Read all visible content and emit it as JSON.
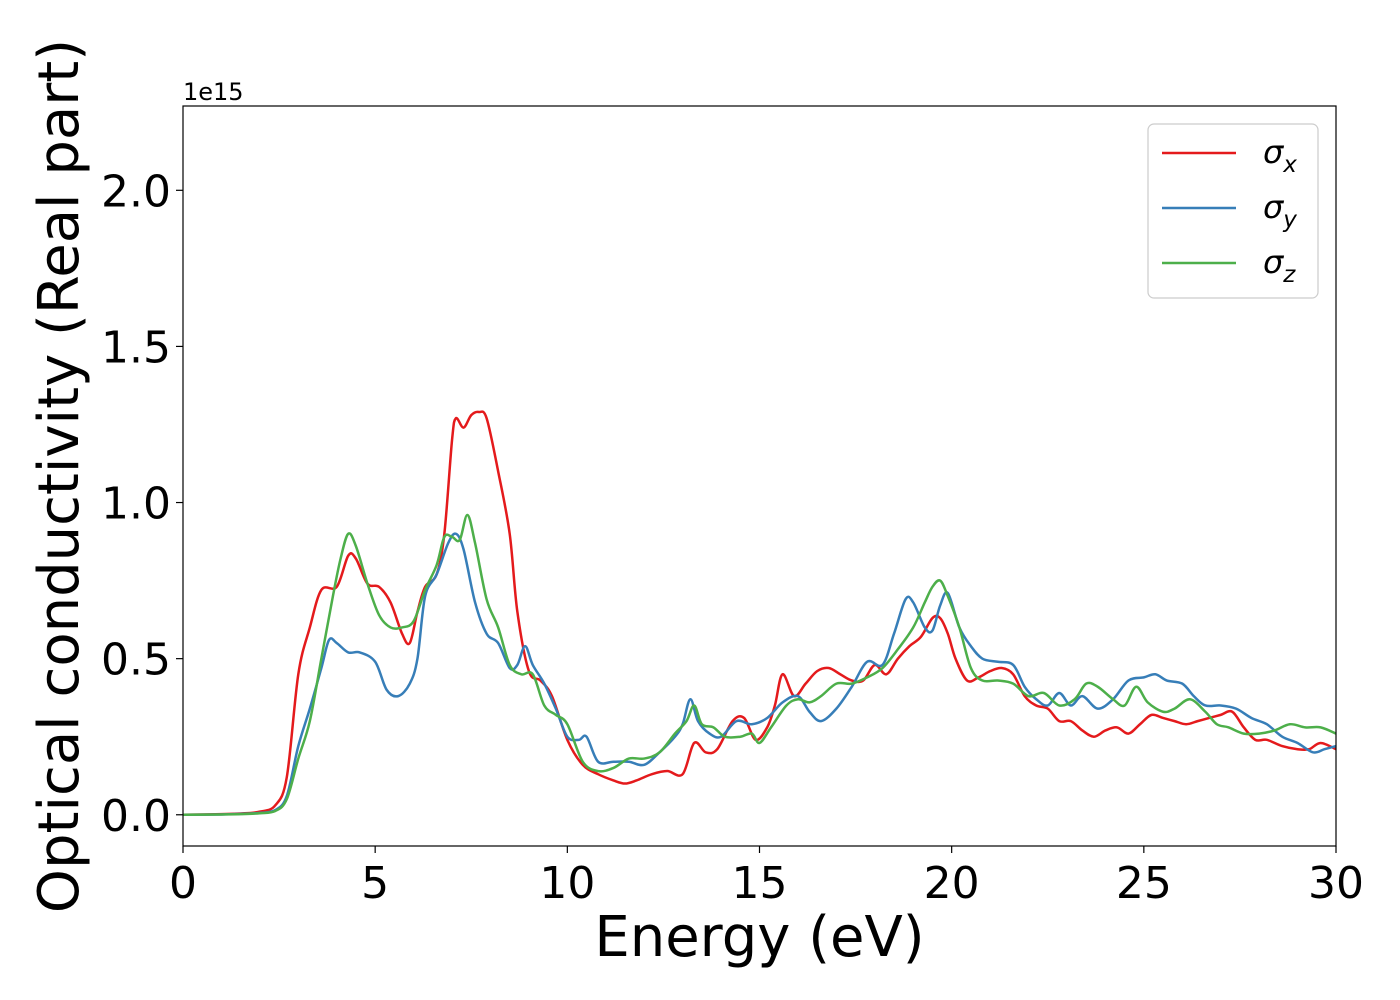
{
  "chart_data": {
    "type": "line",
    "title": "",
    "xlabel": "Energy (eV)",
    "ylabel": "Optical conductivity (Real part)",
    "offset_text": "1e15",
    "xlim": [
      0,
      30
    ],
    "ylim": [
      -0.1,
      2.27
    ],
    "xticks": [
      0,
      5,
      10,
      15,
      20,
      25,
      30
    ],
    "xtick_labels": [
      "0",
      "5",
      "10",
      "15",
      "20",
      "25",
      "30"
    ],
    "yticks": [
      0.0,
      0.5,
      1.0,
      1.5,
      2.0
    ],
    "ytick_labels": [
      "0.0",
      "0.5",
      "1.0",
      "1.5",
      "2.0"
    ],
    "grid": false,
    "legend_position": "top-right",
    "series": [
      {
        "label_base": "σ",
        "label_sub": "x",
        "color": "#e41a1c",
        "points": [
          [
            0,
            0
          ],
          [
            1,
            0.002
          ],
          [
            1.5,
            0.004
          ],
          [
            2,
            0.01
          ],
          [
            2.4,
            0.03
          ],
          [
            2.7,
            0.12
          ],
          [
            3.0,
            0.45
          ],
          [
            3.3,
            0.6
          ],
          [
            3.6,
            0.72
          ],
          [
            4.0,
            0.73
          ],
          [
            4.3,
            0.83
          ],
          [
            4.5,
            0.82
          ],
          [
            4.8,
            0.74
          ],
          [
            5.1,
            0.73
          ],
          [
            5.4,
            0.68
          ],
          [
            5.7,
            0.58
          ],
          [
            5.9,
            0.55
          ],
          [
            6.1,
            0.65
          ],
          [
            6.3,
            0.73
          ],
          [
            6.6,
            0.77
          ],
          [
            6.8,
            0.9
          ],
          [
            7.0,
            1.2
          ],
          [
            7.1,
            1.27
          ],
          [
            7.3,
            1.24
          ],
          [
            7.5,
            1.28
          ],
          [
            7.7,
            1.29
          ],
          [
            7.9,
            1.27
          ],
          [
            8.2,
            1.1
          ],
          [
            8.5,
            0.9
          ],
          [
            8.7,
            0.65
          ],
          [
            9.0,
            0.46
          ],
          [
            9.3,
            0.43
          ],
          [
            9.6,
            0.38
          ],
          [
            10.0,
            0.24
          ],
          [
            10.4,
            0.16
          ],
          [
            10.8,
            0.13
          ],
          [
            11.2,
            0.11
          ],
          [
            11.5,
            0.1
          ],
          [
            11.8,
            0.11
          ],
          [
            12.2,
            0.13
          ],
          [
            12.6,
            0.14
          ],
          [
            13.0,
            0.13
          ],
          [
            13.3,
            0.23
          ],
          [
            13.6,
            0.2
          ],
          [
            13.9,
            0.21
          ],
          [
            14.3,
            0.3
          ],
          [
            14.6,
            0.31
          ],
          [
            14.9,
            0.24
          ],
          [
            15.2,
            0.28
          ],
          [
            15.4,
            0.35
          ],
          [
            15.6,
            0.45
          ],
          [
            15.9,
            0.38
          ],
          [
            16.2,
            0.42
          ],
          [
            16.5,
            0.46
          ],
          [
            16.8,
            0.47
          ],
          [
            17.1,
            0.45
          ],
          [
            17.4,
            0.43
          ],
          [
            17.7,
            0.43
          ],
          [
            18.0,
            0.48
          ],
          [
            18.3,
            0.45
          ],
          [
            18.6,
            0.5
          ],
          [
            18.9,
            0.54
          ],
          [
            19.2,
            0.57
          ],
          [
            19.5,
            0.63
          ],
          [
            19.7,
            0.63
          ],
          [
            19.9,
            0.58
          ],
          [
            20.1,
            0.5
          ],
          [
            20.4,
            0.43
          ],
          [
            20.7,
            0.44
          ],
          [
            21.0,
            0.46
          ],
          [
            21.3,
            0.47
          ],
          [
            21.6,
            0.45
          ],
          [
            21.9,
            0.38
          ],
          [
            22.2,
            0.35
          ],
          [
            22.5,
            0.34
          ],
          [
            22.8,
            0.3
          ],
          [
            23.1,
            0.3
          ],
          [
            23.4,
            0.27
          ],
          [
            23.7,
            0.25
          ],
          [
            24.0,
            0.27
          ],
          [
            24.3,
            0.28
          ],
          [
            24.6,
            0.26
          ],
          [
            24.9,
            0.29
          ],
          [
            25.2,
            0.32
          ],
          [
            25.5,
            0.31
          ],
          [
            25.8,
            0.3
          ],
          [
            26.1,
            0.29
          ],
          [
            26.4,
            0.3
          ],
          [
            26.7,
            0.31
          ],
          [
            27.0,
            0.32
          ],
          [
            27.3,
            0.33
          ],
          [
            27.6,
            0.28
          ],
          [
            27.9,
            0.24
          ],
          [
            28.2,
            0.24
          ],
          [
            28.6,
            0.22
          ],
          [
            29.0,
            0.21
          ],
          [
            29.3,
            0.21
          ],
          [
            29.6,
            0.23
          ],
          [
            30,
            0.21
          ]
        ]
      },
      {
        "label_base": "σ",
        "label_sub": "y",
        "color": "#377eb8",
        "points": [
          [
            0,
            0
          ],
          [
            1,
            0.001
          ],
          [
            1.5,
            0.003
          ],
          [
            2,
            0.006
          ],
          [
            2.4,
            0.015
          ],
          [
            2.7,
            0.06
          ],
          [
            3.0,
            0.22
          ],
          [
            3.3,
            0.34
          ],
          [
            3.6,
            0.47
          ],
          [
            3.8,
            0.56
          ],
          [
            4.0,
            0.55
          ],
          [
            4.3,
            0.52
          ],
          [
            4.6,
            0.52
          ],
          [
            5.0,
            0.49
          ],
          [
            5.3,
            0.4
          ],
          [
            5.6,
            0.38
          ],
          [
            5.9,
            0.42
          ],
          [
            6.1,
            0.5
          ],
          [
            6.3,
            0.7
          ],
          [
            6.6,
            0.77
          ],
          [
            6.9,
            0.87
          ],
          [
            7.1,
            0.9
          ],
          [
            7.3,
            0.85
          ],
          [
            7.6,
            0.68
          ],
          [
            7.9,
            0.58
          ],
          [
            8.2,
            0.55
          ],
          [
            8.5,
            0.47
          ],
          [
            8.7,
            0.48
          ],
          [
            8.9,
            0.54
          ],
          [
            9.1,
            0.48
          ],
          [
            9.4,
            0.42
          ],
          [
            9.7,
            0.34
          ],
          [
            10.0,
            0.25
          ],
          [
            10.3,
            0.24
          ],
          [
            10.5,
            0.25
          ],
          [
            10.8,
            0.17
          ],
          [
            11.2,
            0.17
          ],
          [
            11.6,
            0.17
          ],
          [
            12.0,
            0.16
          ],
          [
            12.4,
            0.2
          ],
          [
            12.8,
            0.25
          ],
          [
            13.0,
            0.29
          ],
          [
            13.2,
            0.37
          ],
          [
            13.4,
            0.3
          ],
          [
            13.7,
            0.26
          ],
          [
            14.0,
            0.25
          ],
          [
            14.4,
            0.3
          ],
          [
            14.8,
            0.29
          ],
          [
            15.2,
            0.31
          ],
          [
            15.6,
            0.36
          ],
          [
            16.0,
            0.38
          ],
          [
            16.3,
            0.33
          ],
          [
            16.6,
            0.3
          ],
          [
            17.0,
            0.34
          ],
          [
            17.4,
            0.41
          ],
          [
            17.8,
            0.49
          ],
          [
            18.2,
            0.48
          ],
          [
            18.5,
            0.58
          ],
          [
            18.8,
            0.69
          ],
          [
            19.0,
            0.68
          ],
          [
            19.3,
            0.6
          ],
          [
            19.5,
            0.59
          ],
          [
            19.7,
            0.67
          ],
          [
            19.9,
            0.71
          ],
          [
            20.2,
            0.6
          ],
          [
            20.5,
            0.54
          ],
          [
            20.8,
            0.5
          ],
          [
            21.2,
            0.49
          ],
          [
            21.6,
            0.48
          ],
          [
            21.9,
            0.41
          ],
          [
            22.2,
            0.37
          ],
          [
            22.5,
            0.35
          ],
          [
            22.8,
            0.39
          ],
          [
            23.1,
            0.35
          ],
          [
            23.4,
            0.38
          ],
          [
            23.8,
            0.34
          ],
          [
            24.2,
            0.37
          ],
          [
            24.6,
            0.43
          ],
          [
            25.0,
            0.44
          ],
          [
            25.3,
            0.45
          ],
          [
            25.6,
            0.43
          ],
          [
            26.0,
            0.42
          ],
          [
            26.3,
            0.38
          ],
          [
            26.6,
            0.35
          ],
          [
            27.0,
            0.35
          ],
          [
            27.4,
            0.34
          ],
          [
            27.8,
            0.31
          ],
          [
            28.2,
            0.29
          ],
          [
            28.6,
            0.25
          ],
          [
            29.0,
            0.23
          ],
          [
            29.4,
            0.2
          ],
          [
            29.7,
            0.21
          ],
          [
            30,
            0.22
          ]
        ]
      },
      {
        "label_base": "σ",
        "label_sub": "z",
        "color": "#4daf4a",
        "points": [
          [
            0,
            0
          ],
          [
            1,
            0.001
          ],
          [
            1.5,
            0.002
          ],
          [
            2,
            0.005
          ],
          [
            2.4,
            0.012
          ],
          [
            2.7,
            0.05
          ],
          [
            3.0,
            0.18
          ],
          [
            3.3,
            0.3
          ],
          [
            3.6,
            0.5
          ],
          [
            3.9,
            0.7
          ],
          [
            4.1,
            0.82
          ],
          [
            4.3,
            0.9
          ],
          [
            4.5,
            0.86
          ],
          [
            4.8,
            0.74
          ],
          [
            5.1,
            0.64
          ],
          [
            5.4,
            0.6
          ],
          [
            5.7,
            0.6
          ],
          [
            6.0,
            0.62
          ],
          [
            6.3,
            0.72
          ],
          [
            6.6,
            0.8
          ],
          [
            6.8,
            0.89
          ],
          [
            7.0,
            0.89
          ],
          [
            7.2,
            0.88
          ],
          [
            7.4,
            0.96
          ],
          [
            7.6,
            0.87
          ],
          [
            7.9,
            0.69
          ],
          [
            8.2,
            0.6
          ],
          [
            8.5,
            0.48
          ],
          [
            8.8,
            0.45
          ],
          [
            9.1,
            0.45
          ],
          [
            9.4,
            0.35
          ],
          [
            9.7,
            0.32
          ],
          [
            10.0,
            0.29
          ],
          [
            10.4,
            0.17
          ],
          [
            10.8,
            0.14
          ],
          [
            11.2,
            0.15
          ],
          [
            11.6,
            0.18
          ],
          [
            12.0,
            0.18
          ],
          [
            12.4,
            0.2
          ],
          [
            12.8,
            0.26
          ],
          [
            13.1,
            0.3
          ],
          [
            13.3,
            0.35
          ],
          [
            13.5,
            0.29
          ],
          [
            13.8,
            0.28
          ],
          [
            14.1,
            0.25
          ],
          [
            14.5,
            0.25
          ],
          [
            14.8,
            0.26
          ],
          [
            15.0,
            0.23
          ],
          [
            15.3,
            0.28
          ],
          [
            15.7,
            0.35
          ],
          [
            16.0,
            0.37
          ],
          [
            16.3,
            0.36
          ],
          [
            16.6,
            0.38
          ],
          [
            17.0,
            0.42
          ],
          [
            17.4,
            0.42
          ],
          [
            17.8,
            0.44
          ],
          [
            18.2,
            0.47
          ],
          [
            18.6,
            0.53
          ],
          [
            19.0,
            0.6
          ],
          [
            19.3,
            0.68
          ],
          [
            19.5,
            0.73
          ],
          [
            19.7,
            0.75
          ],
          [
            19.9,
            0.7
          ],
          [
            20.2,
            0.6
          ],
          [
            20.5,
            0.47
          ],
          [
            20.8,
            0.43
          ],
          [
            21.2,
            0.43
          ],
          [
            21.6,
            0.42
          ],
          [
            22.0,
            0.38
          ],
          [
            22.4,
            0.39
          ],
          [
            22.8,
            0.35
          ],
          [
            23.2,
            0.37
          ],
          [
            23.5,
            0.42
          ],
          [
            23.8,
            0.41
          ],
          [
            24.2,
            0.37
          ],
          [
            24.5,
            0.35
          ],
          [
            24.8,
            0.41
          ],
          [
            25.1,
            0.36
          ],
          [
            25.5,
            0.33
          ],
          [
            25.8,
            0.34
          ],
          [
            26.2,
            0.37
          ],
          [
            26.6,
            0.33
          ],
          [
            26.9,
            0.29
          ],
          [
            27.2,
            0.28
          ],
          [
            27.6,
            0.26
          ],
          [
            28.0,
            0.26
          ],
          [
            28.4,
            0.27
          ],
          [
            28.8,
            0.29
          ],
          [
            29.2,
            0.28
          ],
          [
            29.6,
            0.28
          ],
          [
            30,
            0.26
          ]
        ]
      }
    ]
  }
}
